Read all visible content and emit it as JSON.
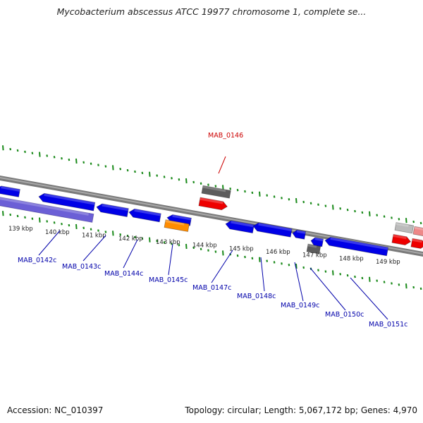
{
  "title": "Mycobacterium abscessus ATCC 19977 chromosome 1, complete se...",
  "accession": "Accession: NC_010397",
  "summary": "Topology: circular; Length: 5,067,172 bp; Genes: 4,970",
  "colors": {
    "backbone": "#808080",
    "tick": "#1a8a1a",
    "gene_forward": "#0000e6",
    "gene_reverse": "#0000e6",
    "gene_red": "#ee0000",
    "gene_orange": "#ff8c00",
    "gene_gray": "#666666",
    "label_forward": "#cc0000",
    "label_reverse": "#0000aa"
  },
  "kbp_ticks": [
    {
      "label": "139 kbp"
    },
    {
      "label": "140 kbp"
    },
    {
      "label": "141 kbp"
    },
    {
      "label": "142 kbp"
    },
    {
      "label": "143 kbp"
    },
    {
      "label": "144 kbp"
    },
    {
      "label": "145 kbp"
    },
    {
      "label": "146 kbp"
    },
    {
      "label": "147 kbp"
    },
    {
      "label": "148 kbp"
    },
    {
      "label": "149 kbp"
    }
  ],
  "gene_labels_forward": [
    {
      "label": "MAB_0146"
    }
  ],
  "gene_labels_reverse": [
    {
      "label": "MAB_0142c"
    },
    {
      "label": "MAB_0143c"
    },
    {
      "label": "MAB_0144c"
    },
    {
      "label": "MAB_0145c"
    },
    {
      "label": "MAB_0147c"
    },
    {
      "label": "MAB_0148c"
    },
    {
      "label": "MAB_0149c"
    },
    {
      "label": "MAB_0150c"
    },
    {
      "label": "MAB_0151c"
    }
  ]
}
